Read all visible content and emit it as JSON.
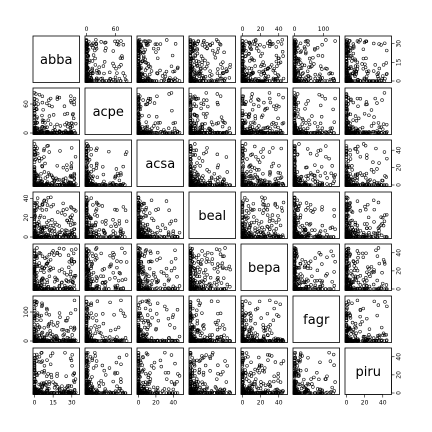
{
  "chart_data": {
    "type": "scatter",
    "kind": "pairs-scatterplot-matrix",
    "title": "",
    "variables": [
      {
        "name": "abba",
        "range": [
          0,
          35
        ],
        "ticks": [
          0,
          15,
          30
        ]
      },
      {
        "name": "acpe",
        "range": [
          0,
          90
        ],
        "ticks": [
          0,
          60
        ]
      },
      {
        "name": "acsa",
        "range": [
          0,
          50
        ],
        "ticks": [
          0,
          20,
          40
        ]
      },
      {
        "name": "beal",
        "range": [
          0,
          45
        ],
        "ticks": [
          0,
          20,
          40
        ]
      },
      {
        "name": "bepa",
        "range": [
          0,
          48
        ],
        "ticks": [
          0,
          20,
          40
        ]
      },
      {
        "name": "fagr",
        "range": [
          0,
          150
        ],
        "ticks": [
          0,
          100
        ]
      },
      {
        "name": "piru",
        "range": [
          0,
          48
        ],
        "ticks": [
          0,
          20,
          40
        ]
      }
    ],
    "axis_layout": {
      "top": [
        "acpe",
        "bepa",
        "fagr"
      ],
      "right": [
        "abba",
        "acsa",
        "bepa",
        "piru"
      ],
      "left": [
        "acpe",
        "beal",
        "fagr"
      ],
      "bottom": [
        "abba",
        "acsa",
        "bepa",
        "piru"
      ]
    },
    "grid": false,
    "legend": "none",
    "marker": "open-circle",
    "point_count": 250,
    "sample_points": [
      {
        "abba": 2,
        "acpe": 0,
        "acsa": 1,
        "beal": 3,
        "bepa": 1,
        "fagr": 0,
        "piru": 1
      },
      {
        "abba": 5,
        "acpe": 2,
        "acsa": 4,
        "beal": 8,
        "bepa": 4,
        "fagr": 3,
        "piru": 2
      },
      {
        "abba": 10,
        "acpe": 1,
        "acsa": 2,
        "beal": 15,
        "bepa": 10,
        "fagr": 5,
        "piru": 3
      },
      {
        "abba": 20,
        "acpe": 4,
        "acsa": 6,
        "beal": 5,
        "bepa": 20,
        "fagr": 2,
        "piru": 5
      },
      {
        "abba": 28,
        "acpe": 0,
        "acsa": 3,
        "beal": 2,
        "bepa": 30,
        "fagr": 1,
        "piru": 8
      },
      {
        "abba": 3,
        "acpe": 60,
        "acsa": 10,
        "beal": 4,
        "bepa": 2,
        "fagr": 40,
        "piru": 2
      },
      {
        "abba": 1,
        "acpe": 20,
        "acsa": 40,
        "beal": 6,
        "bepa": 3,
        "fagr": 90,
        "piru": 4
      },
      {
        "abba": 8,
        "acpe": 3,
        "acsa": 15,
        "beal": 38,
        "bepa": 5,
        "fagr": 10,
        "piru": 30
      },
      {
        "abba": 15,
        "acpe": 5,
        "acsa": 8,
        "beal": 12,
        "bepa": 42,
        "fagr": 6,
        "piru": 12
      },
      {
        "abba": 6,
        "acpe": 10,
        "acsa": 22,
        "beal": 10,
        "bepa": 8,
        "fagr": 130,
        "piru": 6
      },
      {
        "abba": 4,
        "acpe": 8,
        "acsa": 5,
        "beal": 20,
        "bepa": 6,
        "fagr": 20,
        "piru": 40
      },
      {
        "abba": 12,
        "acpe": 35,
        "acsa": 12,
        "beal": 7,
        "bepa": 14,
        "fagr": 60,
        "piru": 10
      }
    ]
  }
}
